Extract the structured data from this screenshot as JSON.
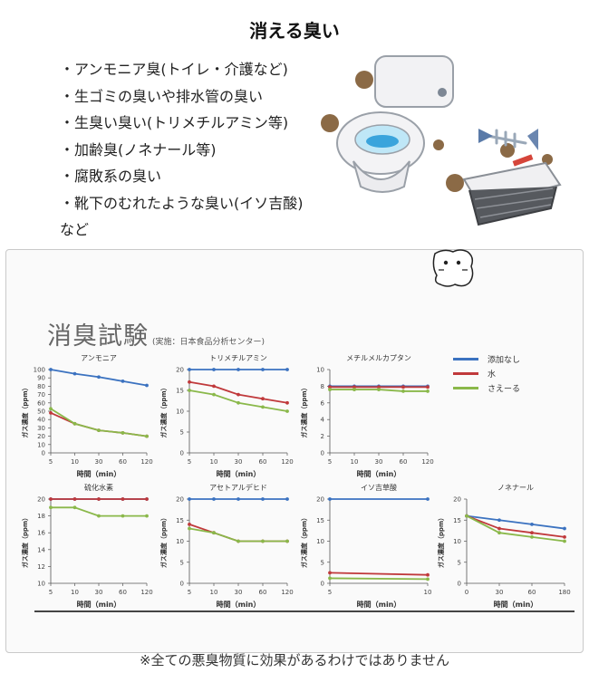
{
  "title": "消える臭い",
  "odor_list": [
    "・アンモニア臭(トイレ・介護など)",
    "・生ゴミの臭いや排水管の臭い",
    "・生臭い臭い(トリメチルアミン等)",
    "・加齢臭(ノネナール等)",
    "・腐敗系の臭い",
    "・靴下のむれたような臭い(イソ吉酸)",
    "など"
  ],
  "panel": {
    "heading": "消臭試験",
    "subheading": "(実施：日本食品分析センター)"
  },
  "legend": [
    {
      "name": "添加なし",
      "color": "#3b72c0"
    },
    {
      "name": "水",
      "color": "#c0393b"
    },
    {
      "name": "さえーる",
      "color": "#8ab84a"
    }
  ],
  "footnote": "※全ての悪臭物質に効果があるわけではありません",
  "chart_data": [
    {
      "type": "line",
      "title": "アンモニア",
      "xlabel": "時間（min）",
      "ylabel": "ガス濃度（ppm）",
      "x": [
        5,
        10,
        30,
        60,
        120
      ],
      "x_ticks": [
        "5",
        "10",
        "30",
        "60",
        "120"
      ],
      "ylim": [
        0,
        100
      ],
      "y_ticks": [
        0,
        10,
        20,
        30,
        40,
        50,
        60,
        70,
        80,
        90,
        100
      ],
      "series": [
        {
          "name": "添加なし",
          "values": [
            100,
            95,
            91,
            86,
            81
          ]
        },
        {
          "name": "水",
          "values": [
            48,
            35,
            27,
            24,
            20
          ]
        },
        {
          "name": "さえーる",
          "values": [
            53,
            35,
            27,
            24,
            20
          ]
        }
      ]
    },
    {
      "type": "line",
      "title": "トリメチルアミン",
      "xlabel": "時間（min）",
      "ylabel": "ガス濃度（ppm）",
      "x": [
        5,
        10,
        30,
        60,
        120
      ],
      "x_ticks": [
        "5",
        "10",
        "30",
        "60",
        "120"
      ],
      "ylim": [
        0,
        20
      ],
      "y_ticks": [
        0,
        5,
        10,
        15,
        20
      ],
      "series": [
        {
          "name": "添加なし",
          "values": [
            20,
            20,
            20,
            20,
            20
          ]
        },
        {
          "name": "水",
          "values": [
            17,
            16,
            14,
            13,
            12
          ]
        },
        {
          "name": "さえーる",
          "values": [
            15,
            14,
            12,
            11,
            10
          ]
        }
      ]
    },
    {
      "type": "line",
      "title": "メチルメルカプタン",
      "xlabel": "時間（min）",
      "ylabel": "ガス濃度（ppm）",
      "x": [
        5,
        10,
        30,
        60,
        120
      ],
      "x_ticks": [
        "5",
        "10",
        "30",
        "60",
        "120"
      ],
      "ylim": [
        0,
        10
      ],
      "y_ticks": [
        0,
        2,
        4,
        6,
        8,
        10
      ],
      "series": [
        {
          "name": "添加なし",
          "values": [
            8,
            8,
            8,
            8,
            8
          ]
        },
        {
          "name": "水",
          "values": [
            7.9,
            7.9,
            7.9,
            7.9,
            7.9
          ]
        },
        {
          "name": "さえーる",
          "values": [
            7.6,
            7.6,
            7.6,
            7.4,
            7.4
          ]
        }
      ]
    },
    {
      "type": "line",
      "title": "硫化水素",
      "xlabel": "時間（min）",
      "ylabel": "ガス濃度（ppm）",
      "x": [
        5,
        10,
        30,
        60,
        120
      ],
      "x_ticks": [
        "5",
        "10",
        "30",
        "60",
        "120"
      ],
      "ylim": [
        10,
        20
      ],
      "y_ticks": [
        10,
        12,
        14,
        16,
        18,
        20
      ],
      "series": [
        {
          "name": "添加なし",
          "values": [
            20,
            20,
            20,
            20,
            20
          ]
        },
        {
          "name": "水",
          "values": [
            20,
            20,
            20,
            20,
            20
          ]
        },
        {
          "name": "さえーる",
          "values": [
            19,
            19,
            18,
            18,
            18
          ]
        }
      ]
    },
    {
      "type": "line",
      "title": "アセトアルデヒド",
      "xlabel": "時間（min）",
      "ylabel": "ガス濃度（ppm）",
      "x": [
        5,
        10,
        30,
        60,
        120
      ],
      "x_ticks": [
        "5",
        "10",
        "30",
        "60",
        "120"
      ],
      "ylim": [
        0,
        20
      ],
      "y_ticks": [
        0,
        5,
        10,
        15,
        20
      ],
      "series": [
        {
          "name": "添加なし",
          "values": [
            20,
            20,
            20,
            20,
            20
          ]
        },
        {
          "name": "水",
          "values": [
            14,
            12,
            10,
            10,
            10
          ]
        },
        {
          "name": "さえーる",
          "values": [
            13,
            12,
            10,
            10,
            10
          ]
        }
      ]
    },
    {
      "type": "line",
      "title": "イソ吉草酸",
      "xlabel": "時間（min）",
      "ylabel": "ガス濃度（ppm）",
      "x": [
        5,
        10
      ],
      "x_ticks": [
        "5",
        "10"
      ],
      "ylim": [
        0,
        20
      ],
      "y_ticks": [
        0,
        5,
        10,
        15,
        20
      ],
      "series": [
        {
          "name": "添加なし",
          "values": [
            20,
            20
          ]
        },
        {
          "name": "水",
          "values": [
            2.5,
            2
          ]
        },
        {
          "name": "さえーる",
          "values": [
            1.2,
            1
          ]
        }
      ]
    },
    {
      "type": "line",
      "title": "ノネナール",
      "xlabel": "時間（min）",
      "ylabel": "ガス濃度（ppm）",
      "x": [
        0,
        30,
        60,
        180
      ],
      "x_ticks": [
        "0",
        "30",
        "60",
        "180"
      ],
      "ylim": [
        0,
        20
      ],
      "y_ticks": [
        0,
        5,
        10,
        15,
        20
      ],
      "series": [
        {
          "name": "添加なし",
          "values": [
            16,
            15,
            14,
            13
          ]
        },
        {
          "name": "水",
          "values": [
            16,
            13,
            12,
            11
          ]
        },
        {
          "name": "さえーる",
          "values": [
            16,
            12,
            11,
            10
          ]
        }
      ]
    }
  ]
}
